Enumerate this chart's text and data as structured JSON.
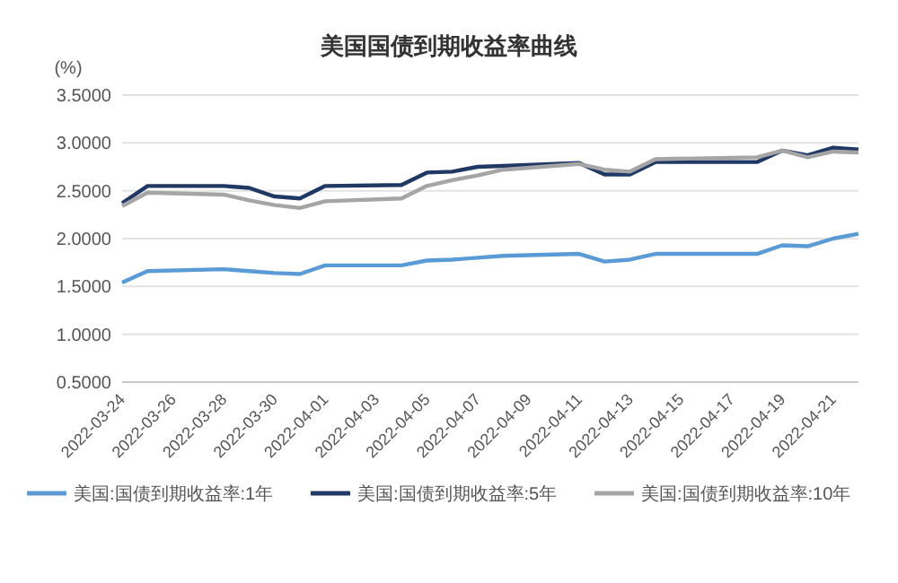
{
  "chart_data": {
    "type": "line",
    "title": "美国国债到期收益率曲线",
    "ylabel": "(%)",
    "x": [
      "2022-03-24",
      "2022-03-25",
      "2022-03-28",
      "2022-03-29",
      "2022-03-30",
      "2022-03-31",
      "2022-04-01",
      "2022-04-04",
      "2022-04-05",
      "2022-04-06",
      "2022-04-07",
      "2022-04-08",
      "2022-04-11",
      "2022-04-12",
      "2022-04-13",
      "2022-04-14",
      "2022-04-18",
      "2022-04-19",
      "2022-04-20",
      "2022-04-21",
      "2022-04-22"
    ],
    "series": [
      {
        "name": "美国:国债到期收益率:1年",
        "color": "#5b9bd5",
        "values": [
          1.54,
          1.66,
          1.68,
          1.66,
          1.64,
          1.63,
          1.72,
          1.72,
          1.77,
          1.78,
          1.8,
          1.82,
          1.84,
          1.76,
          1.78,
          1.84,
          1.84,
          1.93,
          1.92,
          2.0,
          2.05
        ]
      },
      {
        "name": "美国:国债到期收益率:5年",
        "color": "#1f3864",
        "values": [
          2.37,
          2.55,
          2.55,
          2.53,
          2.44,
          2.42,
          2.55,
          2.56,
          2.69,
          2.7,
          2.75,
          2.76,
          2.79,
          2.67,
          2.67,
          2.8,
          2.8,
          2.92,
          2.87,
          2.95,
          2.93
        ]
      },
      {
        "name": "美国:国债到期收益率:10年",
        "color": "#a5a5a5",
        "values": [
          2.34,
          2.48,
          2.46,
          2.4,
          2.35,
          2.32,
          2.39,
          2.42,
          2.55,
          2.61,
          2.66,
          2.72,
          2.78,
          2.72,
          2.7,
          2.83,
          2.85,
          2.92,
          2.85,
          2.91,
          2.9
        ]
      }
    ],
    "xlim": [
      "2022-03-24",
      "2022-04-22"
    ],
    "xticks": [
      "2022-03-24",
      "2022-03-26",
      "2022-03-28",
      "2022-03-30",
      "2022-04-01",
      "2022-04-03",
      "2022-04-05",
      "2022-04-07",
      "2022-04-09",
      "2022-04-11",
      "2022-04-13",
      "2022-04-15",
      "2022-04-17",
      "2022-04-19",
      "2022-04-21"
    ],
    "ylim": [
      0.5,
      3.5
    ],
    "yticks": [
      {
        "value": 0.5,
        "label": "0.5000"
      },
      {
        "value": 1,
        "label": "1.0000"
      },
      {
        "value": 1.5,
        "label": "1.5000"
      },
      {
        "value": 2,
        "label": "2.0000"
      },
      {
        "value": 2.5,
        "label": "2.5000"
      },
      {
        "value": 3,
        "label": "3.0000"
      },
      {
        "value": 3.5,
        "label": "3.5000"
      }
    ],
    "grid": "y",
    "legend": "bottom",
    "marker": "none",
    "line_style": "solid"
  }
}
